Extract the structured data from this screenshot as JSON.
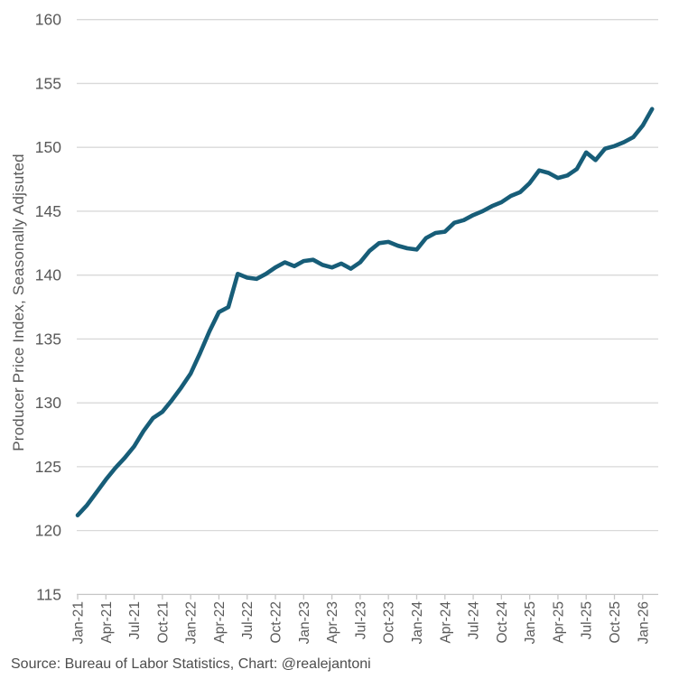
{
  "chart_data": {
    "type": "line",
    "series_name": "Producer Price Index",
    "ylabel": "Producer Price Index, Seasonally Adjsuted",
    "ylim": [
      115,
      160
    ],
    "ytick_step": 5,
    "ytick_labels": [
      "115",
      "120",
      "125",
      "130",
      "135",
      "140",
      "145",
      "150",
      "155",
      "160"
    ],
    "xtick_every": 3,
    "xtick_labels_visible": [
      "Jan-21",
      "Apr-21",
      "Jul-21",
      "Oct-21",
      "Jan-22",
      "Apr-22",
      "Jul-22",
      "Oct-22",
      "Jan-23",
      "Apr-23",
      "Jul-23",
      "Oct-23",
      "Jan-24",
      "Apr-24",
      "Jul-24",
      "Oct-24",
      "Jan-25",
      "Apr-25",
      "Jul-25",
      "Oct-25",
      "Jan-26"
    ],
    "grid": "horizontal",
    "legend": "none",
    "x": [
      "Jan-21",
      "Feb-21",
      "Mar-21",
      "Apr-21",
      "May-21",
      "Jun-21",
      "Jul-21",
      "Aug-21",
      "Sep-21",
      "Oct-21",
      "Nov-21",
      "Dec-21",
      "Jan-22",
      "Feb-22",
      "Mar-22",
      "Apr-22",
      "May-22",
      "Jun-22",
      "Jul-22",
      "Aug-22",
      "Sep-22",
      "Oct-22",
      "Nov-22",
      "Dec-22",
      "Jan-23",
      "Feb-23",
      "Mar-23",
      "Apr-23",
      "May-23",
      "Jun-23",
      "Jul-23",
      "Aug-23",
      "Sep-23",
      "Oct-23",
      "Nov-23",
      "Dec-23",
      "Jan-24",
      "Feb-24",
      "Mar-24",
      "Apr-24",
      "May-24",
      "Jun-24",
      "Jul-24",
      "Aug-24",
      "Sep-24",
      "Oct-24",
      "Nov-24",
      "Dec-24",
      "Jan-25",
      "Feb-25",
      "Mar-25",
      "Apr-25",
      "May-25",
      "Jun-25",
      "Jul-25",
      "Aug-25",
      "Sep-25",
      "Oct-25",
      "Nov-25",
      "Dec-25",
      "Jan-26",
      "Feb-26"
    ],
    "values": [
      121.2,
      122.0,
      123.0,
      124.0,
      124.9,
      125.7,
      126.6,
      127.8,
      128.8,
      129.3,
      130.2,
      131.2,
      132.3,
      133.9,
      135.6,
      137.1,
      137.5,
      140.1,
      139.8,
      139.7,
      140.1,
      140.6,
      141.0,
      140.7,
      141.1,
      141.2,
      140.8,
      140.6,
      140.9,
      140.5,
      141.0,
      141.9,
      142.5,
      142.6,
      142.3,
      142.1,
      142.0,
      142.9,
      143.3,
      143.4,
      144.1,
      144.3,
      144.7,
      145.0,
      145.4,
      145.7,
      146.2,
      146.5,
      147.2,
      148.2,
      148.0,
      147.6,
      147.8,
      148.3,
      149.6,
      149.0,
      149.9,
      150.1,
      150.4,
      150.8,
      151.7,
      153.0
    ],
    "line_color": "#175d78",
    "grid_color": "#d9d9d9",
    "axis_color": "#c6c6c6",
    "tick_label_color": "#595959"
  },
  "footer": {
    "source": "Source: Bureau of Labor Statistics, Chart: @realejantoni"
  }
}
